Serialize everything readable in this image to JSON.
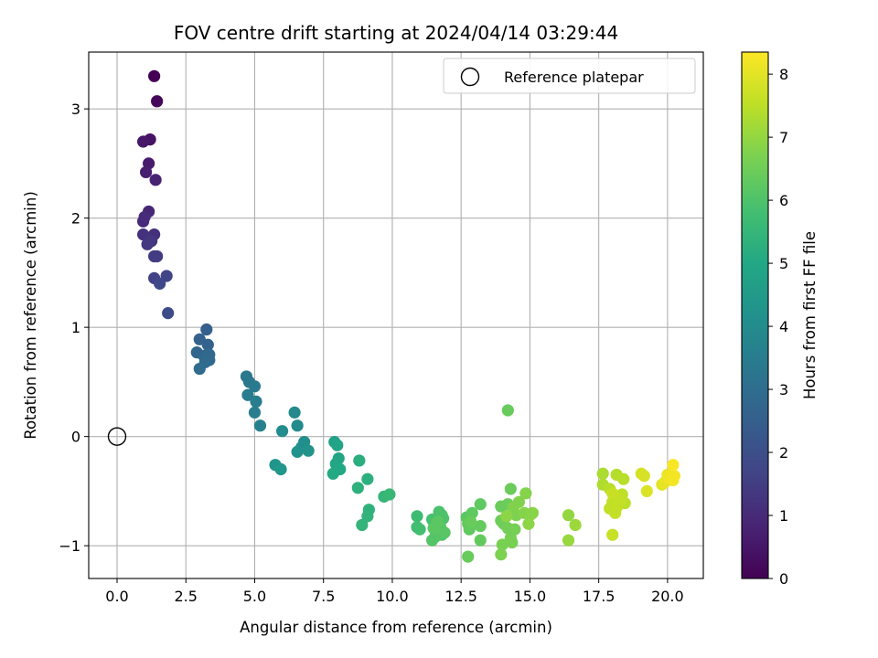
{
  "chart_data": {
    "type": "scatter",
    "title": "FOV centre drift starting at 2024/04/14 03:29:44",
    "xlabel": "Angular distance from reference (arcmin)",
    "ylabel": "Rotation from reference (arcmin)",
    "xlim": [
      -1.03,
      21.3
    ],
    "ylim": [
      -1.3,
      3.52
    ],
    "xticks": [
      0.0,
      2.5,
      5.0,
      7.5,
      10.0,
      12.5,
      15.0,
      17.5,
      20.0
    ],
    "xtick_labels": [
      "0.0",
      "2.5",
      "5.0",
      "7.5",
      "10.0",
      "12.5",
      "15.0",
      "17.5",
      "20.0"
    ],
    "yticks": [
      -1,
      0,
      1,
      2,
      3
    ],
    "ytick_labels": [
      "−1",
      "0",
      "1",
      "2",
      "3"
    ],
    "grid": true,
    "colormap": "viridis",
    "colorbar": {
      "label": "Hours from first FF file",
      "range": [
        0,
        8.35
      ],
      "ticks": [
        0,
        1,
        2,
        3,
        4,
        5,
        6,
        7,
        8
      ],
      "tick_labels": [
        "0",
        "1",
        "2",
        "3",
        "4",
        "5",
        "6",
        "7",
        "8"
      ]
    },
    "legend": {
      "position": "top-right",
      "entries": [
        "Reference platepar"
      ]
    },
    "reference_point": {
      "x": 0,
      "y": 0
    },
    "series": [
      {
        "columns": [
          "x",
          "y",
          "hours"
        ],
        "points": [
          [
            1.35,
            3.3,
            0.0
          ],
          [
            1.45,
            3.07,
            0.15
          ],
          [
            1.2,
            2.72,
            0.4
          ],
          [
            0.95,
            2.7,
            0.5
          ],
          [
            1.15,
            2.5,
            0.6
          ],
          [
            1.05,
            2.42,
            0.7
          ],
          [
            1.4,
            2.35,
            0.8
          ],
          [
            1.15,
            2.06,
            0.9
          ],
          [
            0.95,
            1.97,
            1.0
          ],
          [
            1.0,
            2.01,
            1.05
          ],
          [
            1.35,
            1.85,
            1.15
          ],
          [
            0.95,
            1.85,
            1.2
          ],
          [
            1.25,
            1.79,
            1.3
          ],
          [
            1.1,
            1.76,
            1.35
          ],
          [
            1.35,
            1.65,
            1.45
          ],
          [
            1.45,
            1.65,
            1.5
          ],
          [
            1.35,
            1.45,
            1.6
          ],
          [
            1.8,
            1.47,
            1.7
          ],
          [
            1.55,
            1.4,
            1.8
          ],
          [
            1.85,
            1.13,
            1.9
          ],
          [
            3.25,
            0.98,
            2.5
          ],
          [
            3.0,
            0.89,
            2.6
          ],
          [
            3.3,
            0.84,
            2.65
          ],
          [
            2.9,
            0.77,
            2.7
          ],
          [
            3.15,
            0.74,
            2.75
          ],
          [
            3.35,
            0.75,
            2.8
          ],
          [
            3.35,
            0.7,
            2.85
          ],
          [
            3.2,
            0.68,
            2.9
          ],
          [
            3.0,
            0.62,
            2.95
          ],
          [
            4.7,
            0.55,
            3.3
          ],
          [
            4.8,
            0.5,
            3.35
          ],
          [
            5.0,
            0.46,
            3.4
          ],
          [
            4.75,
            0.38,
            3.45
          ],
          [
            5.05,
            0.32,
            3.5
          ],
          [
            5.0,
            0.22,
            3.55
          ],
          [
            5.2,
            0.1,
            3.6
          ],
          [
            6.45,
            0.22,
            3.9
          ],
          [
            6.55,
            0.1,
            3.95
          ],
          [
            6.0,
            0.05,
            4.0
          ],
          [
            6.8,
            -0.05,
            4.1
          ],
          [
            6.7,
            -0.1,
            4.15
          ],
          [
            6.55,
            -0.14,
            4.2
          ],
          [
            6.95,
            -0.13,
            4.25
          ],
          [
            5.75,
            -0.26,
            4.3
          ],
          [
            5.95,
            -0.3,
            4.35
          ],
          [
            7.9,
            -0.05,
            4.8
          ],
          [
            8.0,
            -0.08,
            4.85
          ],
          [
            8.05,
            -0.2,
            4.9
          ],
          [
            7.95,
            -0.25,
            4.95
          ],
          [
            8.1,
            -0.3,
            5.0
          ],
          [
            7.85,
            -0.34,
            5.05
          ],
          [
            8.8,
            -0.22,
            5.2
          ],
          [
            9.1,
            -0.39,
            5.25
          ],
          [
            8.75,
            -0.47,
            5.3
          ],
          [
            9.15,
            -0.67,
            5.35
          ],
          [
            9.1,
            -0.73,
            5.4
          ],
          [
            8.9,
            -0.81,
            5.45
          ],
          [
            9.7,
            -0.55,
            5.5
          ],
          [
            9.9,
            -0.53,
            5.55
          ],
          [
            10.9,
            -0.73,
            5.7
          ],
          [
            10.9,
            -0.83,
            5.75
          ],
          [
            11.0,
            -0.85,
            5.8
          ],
          [
            11.45,
            -0.76,
            5.85
          ],
          [
            11.5,
            -0.78,
            5.9
          ],
          [
            11.6,
            -0.8,
            5.95
          ],
          [
            11.7,
            -0.69,
            5.95
          ],
          [
            11.8,
            -0.72,
            6.0
          ],
          [
            11.85,
            -0.75,
            6.0
          ],
          [
            11.6,
            -0.88,
            6.05
          ],
          [
            11.8,
            -0.9,
            6.05
          ],
          [
            11.45,
            -0.95,
            6.1
          ],
          [
            11.55,
            -0.92,
            6.1
          ],
          [
            11.9,
            -0.88,
            6.15
          ],
          [
            11.75,
            -0.83,
            6.15
          ],
          [
            11.5,
            -0.84,
            6.2
          ],
          [
            11.65,
            -0.78,
            6.2
          ],
          [
            12.7,
            -0.74,
            6.2
          ],
          [
            12.9,
            -0.7,
            6.25
          ],
          [
            13.2,
            -0.62,
            6.25
          ],
          [
            12.75,
            -0.8,
            6.3
          ],
          [
            12.8,
            -0.85,
            6.3
          ],
          [
            13.2,
            -0.82,
            6.35
          ],
          [
            13.2,
            -0.95,
            6.35
          ],
          [
            12.75,
            -1.1,
            6.4
          ],
          [
            12.85,
            -0.78,
            6.4
          ],
          [
            13.95,
            -0.64,
            6.4
          ],
          [
            14.2,
            -0.62,
            6.45
          ],
          [
            14.3,
            -0.48,
            6.45
          ],
          [
            13.95,
            -0.77,
            6.5
          ],
          [
            14.05,
            -0.8,
            6.5
          ],
          [
            14.2,
            -0.84,
            6.55
          ],
          [
            14.35,
            -0.86,
            6.55
          ],
          [
            14.45,
            -0.85,
            6.6
          ],
          [
            14.3,
            -0.93,
            6.6
          ],
          [
            14.35,
            -0.97,
            6.65
          ],
          [
            14.0,
            -0.99,
            6.65
          ],
          [
            13.95,
            -1.08,
            6.7
          ],
          [
            14.5,
            -0.72,
            6.7
          ],
          [
            14.6,
            -0.6,
            6.75
          ],
          [
            14.4,
            -0.65,
            6.75
          ],
          [
            14.85,
            -0.52,
            6.8
          ],
          [
            14.8,
            -0.7,
            6.8
          ],
          [
            15.0,
            -0.72,
            6.85
          ],
          [
            15.1,
            -0.7,
            6.85
          ],
          [
            14.95,
            -0.8,
            6.9
          ],
          [
            14.15,
            -0.73,
            6.9
          ],
          [
            14.2,
            0.24,
            6.4
          ],
          [
            16.4,
            -0.72,
            7.0
          ],
          [
            16.4,
            -0.95,
            7.05
          ],
          [
            16.65,
            -0.81,
            7.1
          ],
          [
            17.65,
            -0.34,
            7.3
          ],
          [
            17.65,
            -0.44,
            7.35
          ],
          [
            18.15,
            -0.35,
            7.4
          ],
          [
            18.4,
            -0.39,
            7.45
          ],
          [
            17.9,
            -0.48,
            7.45
          ],
          [
            18.35,
            -0.53,
            7.5
          ],
          [
            18.45,
            -0.61,
            7.5
          ],
          [
            18.0,
            -0.6,
            7.55
          ],
          [
            17.9,
            -0.66,
            7.55
          ],
          [
            18.15,
            -0.65,
            7.6
          ],
          [
            18.3,
            -0.58,
            7.6
          ],
          [
            18.1,
            -0.7,
            7.6
          ],
          [
            18.0,
            -0.9,
            7.65
          ],
          [
            18.0,
            -0.52,
            7.65
          ],
          [
            19.05,
            -0.34,
            7.8
          ],
          [
            19.15,
            -0.36,
            7.85
          ],
          [
            19.25,
            -0.5,
            7.9
          ],
          [
            19.8,
            -0.44,
            8.0
          ],
          [
            19.9,
            -0.42,
            8.05
          ],
          [
            20.0,
            -0.35,
            8.1
          ],
          [
            20.05,
            -0.38,
            8.15
          ],
          [
            20.2,
            -0.4,
            8.2
          ],
          [
            20.25,
            -0.36,
            8.25
          ],
          [
            20.2,
            -0.26,
            8.3
          ]
        ]
      }
    ]
  }
}
